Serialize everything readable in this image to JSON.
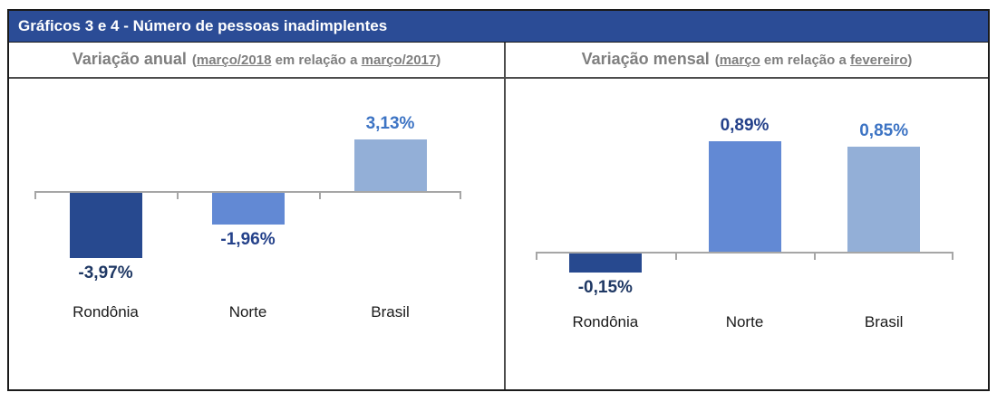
{
  "page": {
    "title_bar": "Gráficos 3 e 4 - Número de pessoas inadimplentes"
  },
  "colors": {
    "title_bar_bg": "#2B4C96",
    "title_text": "#FFFFFF",
    "header_text": "#7F7F7F",
    "divider": "#4D4D4D",
    "outer_border": "#1A1A1A",
    "axis": "#A6A6A6",
    "category_label": "#1A1A1A",
    "bar_colors": [
      "#27498F",
      "#6289D4",
      "#93AFD7"
    ],
    "value_label_colors": [
      "#1F3864",
      "#24418A",
      "#3D74C4"
    ]
  },
  "headers": {
    "left": {
      "title": "Variação anual",
      "p_open": "(",
      "u1": "março/2018",
      "mid": " em relação a ",
      "u2": "março/2017",
      "p_close": ")"
    },
    "right": {
      "title": "Variação mensal",
      "p_open": "(",
      "u1": "março",
      "mid": " em relação a ",
      "u2": "fevereiro",
      "p_close": ")"
    }
  },
  "chart_data": [
    {
      "type": "bar",
      "title": "Variação anual (março/2018 em relação a março/2017)",
      "categories": [
        "Rondônia",
        "Norte",
        "Brasil"
      ],
      "values": [
        -3.97,
        -1.96,
        3.13
      ],
      "data_labels": [
        "-3,97%",
        "-1,96%",
        "3,13%"
      ],
      "unit": "%",
      "baseline": 0,
      "gridlines": false,
      "legend": "none",
      "ylim": [
        -5,
        4
      ]
    },
    {
      "type": "bar",
      "title": "Variação mensal (março em relação a fevereiro)",
      "categories": [
        "Rondônia",
        "Norte",
        "Brasil"
      ],
      "values": [
        -0.15,
        0.89,
        0.85
      ],
      "data_labels": [
        "-0,15%",
        "0,89%",
        "0,85%"
      ],
      "unit": "%",
      "baseline": 0,
      "gridlines": false,
      "legend": "none",
      "ylim": [
        -0.4,
        1.1
      ]
    }
  ]
}
